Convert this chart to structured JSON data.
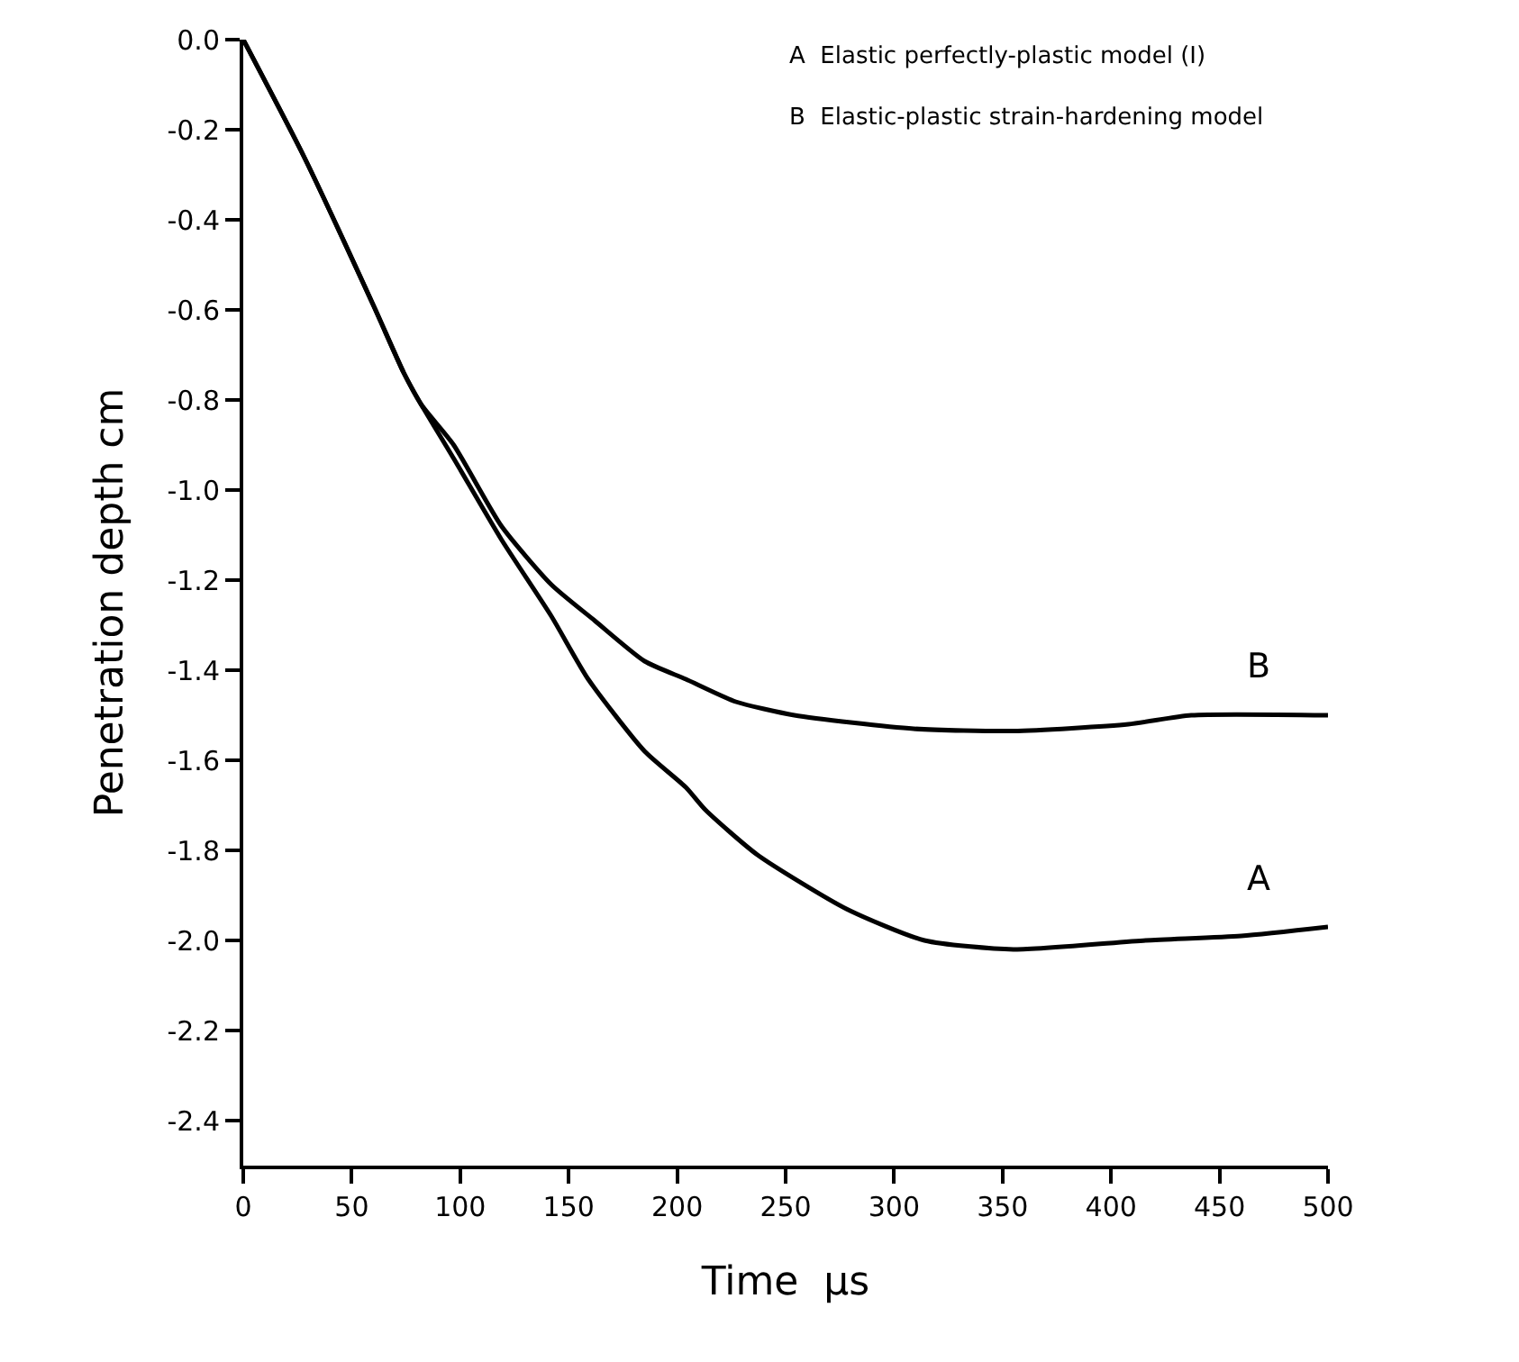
{
  "chart_data": {
    "type": "line",
    "xlabel": "Time  μs",
    "ylabel": "Penetration depth cm",
    "xlim": [
      0,
      500
    ],
    "ylim": [
      -2.5,
      0
    ],
    "xticks": [
      0,
      50,
      100,
      150,
      200,
      250,
      300,
      350,
      400,
      450,
      500
    ],
    "yticks": [
      {
        "value": 0,
        "label": "0.0"
      },
      -0.2,
      -0.4,
      -0.6,
      -0.8,
      {
        "value": -1,
        "label": "-1.0"
      },
      -1.2,
      -1.4,
      -1.6,
      -1.8,
      {
        "value": -2,
        "label": "-2.0"
      },
      -2.2,
      -2.4
    ],
    "grid": false,
    "legend": false,
    "annotations": [
      "A  Elastic perfectly-plastic model (I)",
      "B  Elastic-plastic strain-hardening model"
    ],
    "series": [
      {
        "name": "A",
        "color": "#000000",
        "x": [
          0,
          28,
          60,
          74,
          82,
          97,
          119,
          142,
          159,
          185,
          204,
          213,
          237,
          278,
          314,
          355,
          416,
          460,
          500
        ],
        "values": [
          0,
          -0.26,
          -0.59,
          -0.74,
          -0.81,
          -0.93,
          -1.11,
          -1.28,
          -1.42,
          -1.58,
          -1.66,
          -1.71,
          -1.81,
          -1.93,
          -2.0,
          -2.02,
          -2.0,
          -1.99,
          -1.97
        ]
      },
      {
        "name": "B",
        "color": "#000000",
        "x": [
          0,
          28,
          60,
          74,
          82,
          97,
          119,
          142,
          162,
          185,
          204,
          227,
          254,
          309,
          355,
          408,
          437,
          500
        ],
        "values": [
          0,
          -0.26,
          -0.59,
          -0.74,
          -0.81,
          -0.9,
          -1.08,
          -1.21,
          -1.29,
          -1.38,
          -1.42,
          -1.47,
          -1.5,
          -1.53,
          -1.535,
          -1.52,
          -1.5,
          -1.5
        ]
      }
    ]
  }
}
